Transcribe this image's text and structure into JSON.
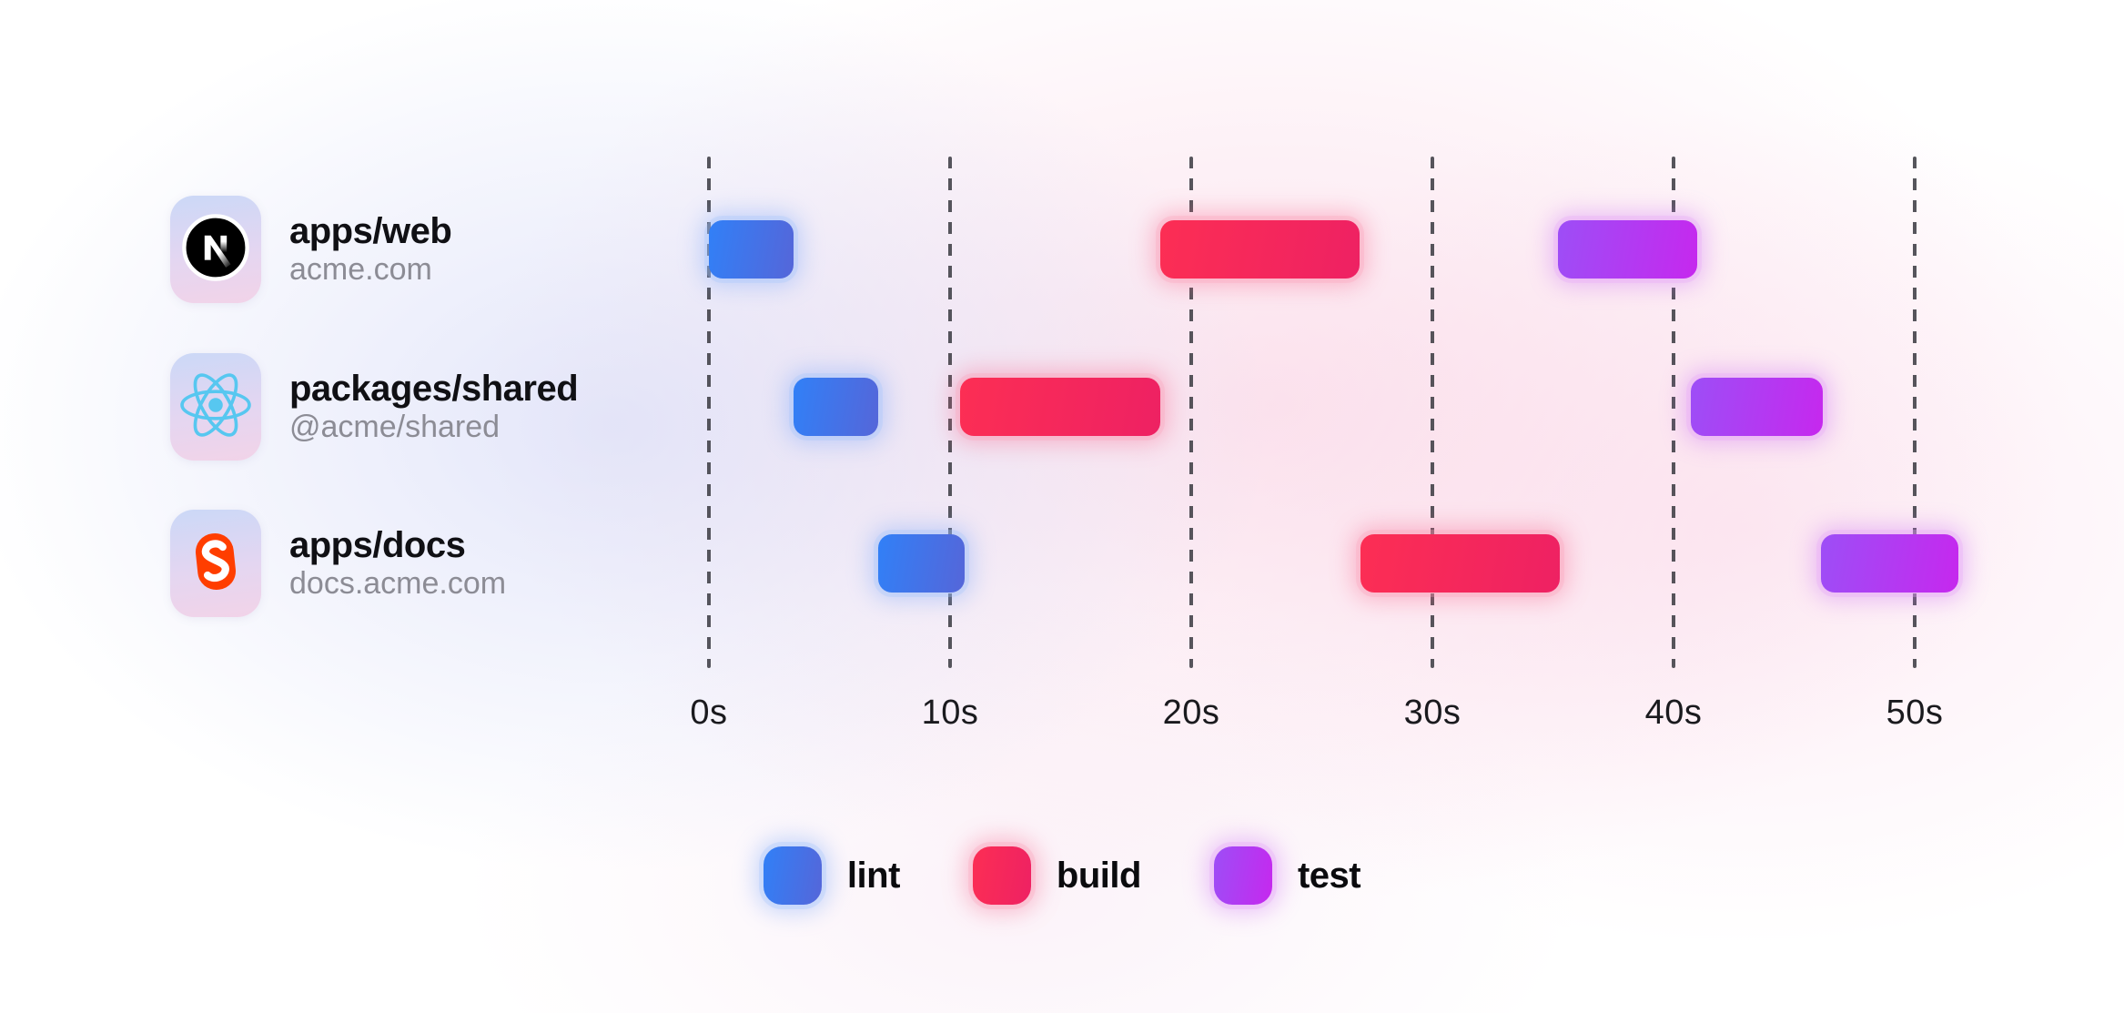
{
  "colors": {
    "lint_from": "#3180F7",
    "lint_to": "#5566D9",
    "build_from": "#FC2E54",
    "build_to": "#EE2163",
    "test_from": "#9D4EF6",
    "test_to": "#C628EE",
    "tile_from": "#CBD8F7",
    "tile_to": "#F2D3E8",
    "title_text": "#101014",
    "subtitle_text": "#8C8C95",
    "axis_text": "#1A1A1E",
    "gridline": "#3F3F46",
    "nextjs_black": "#000000",
    "react_cyan": "#57C7F0",
    "svelte_orange": "#FF3E00"
  },
  "chart_data": {
    "type": "gantt",
    "unit": "seconds",
    "grid": "dashed-vertical",
    "legend_position": "bottom-center",
    "x_range": [
      0,
      52
    ],
    "x_ticks": [
      {
        "value": 0,
        "label": "0s"
      },
      {
        "value": 10,
        "label": "10s"
      },
      {
        "value": 20,
        "label": "20s"
      },
      {
        "value": 30,
        "label": "30s"
      },
      {
        "value": 40,
        "label": "40s"
      },
      {
        "value": 50,
        "label": "50s"
      }
    ],
    "rows": [
      {
        "package": "apps/web",
        "detail": "acme.com",
        "icon": "nextjs-icon",
        "tasks": [
          {
            "name": "lint",
            "start_s": 0.0,
            "end_s": 3.5
          },
          {
            "name": "build",
            "start_s": 18.7,
            "end_s": 27.0
          },
          {
            "name": "test",
            "start_s": 35.2,
            "end_s": 41.0
          }
        ]
      },
      {
        "package": "packages/shared",
        "detail": "@acme/shared",
        "icon": "react-icon",
        "tasks": [
          {
            "name": "lint",
            "start_s": 3.5,
            "end_s": 7.0
          },
          {
            "name": "build",
            "start_s": 10.4,
            "end_s": 18.7
          },
          {
            "name": "test",
            "start_s": 40.7,
            "end_s": 46.2
          }
        ]
      },
      {
        "package": "apps/docs",
        "detail": "docs.acme.com",
        "icon": "svelte-icon",
        "tasks": [
          {
            "name": "lint",
            "start_s": 7.0,
            "end_s": 10.6
          },
          {
            "name": "build",
            "start_s": 27.0,
            "end_s": 35.3
          },
          {
            "name": "test",
            "start_s": 46.1,
            "end_s": 51.8
          }
        ]
      }
    ],
    "legend": [
      {
        "label": "lint"
      },
      {
        "label": "build"
      },
      {
        "label": "test"
      }
    ]
  }
}
